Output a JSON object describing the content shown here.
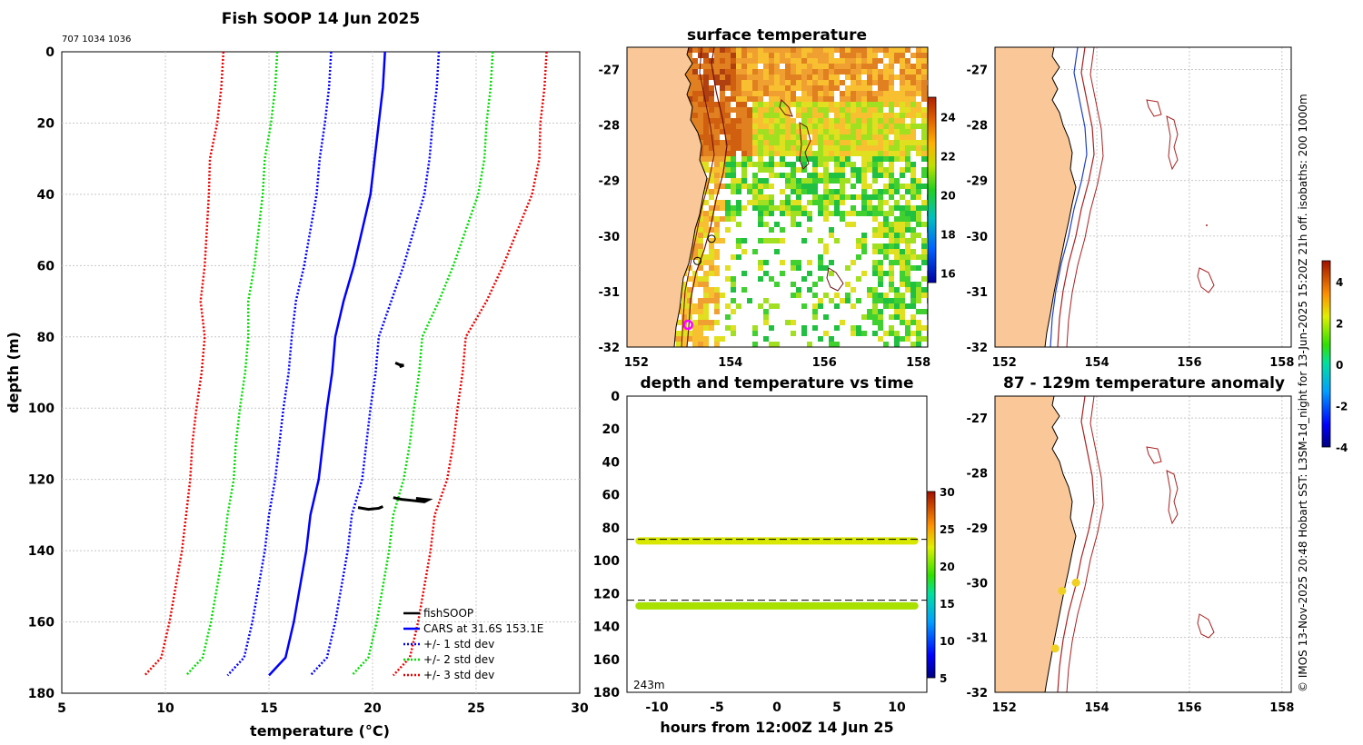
{
  "figure_title": "Fish SOOP 14 Jun 2025",
  "cast_ids": "707 1034 1036",
  "side_text": "© IMOS 13-Nov-2025 20:48 Hobart SST: L3SM-1d_night for 13-Jun-2025 15:20Z 21h off. isobaths: 200  1000m",
  "colors": {
    "cars": "#0000ff",
    "std1": "#0000ff",
    "std2": "#00dd00",
    "std3": "#ee0000",
    "land": "#fac898",
    "fishsoop": "#000000",
    "isobath": "#aa2222",
    "marker": "#ff00ff"
  },
  "chart_data": [
    {
      "type": "line",
      "id": "profile",
      "title": "Fish SOOP 14 Jun 2025",
      "xlabel": "temperature (°C)",
      "ylabel": "depth (m)",
      "xlim": [
        5,
        30
      ],
      "ylim": [
        180,
        0
      ],
      "xticks": [
        5,
        10,
        15,
        20,
        25,
        30
      ],
      "yticks": [
        0,
        20,
        40,
        60,
        80,
        100,
        120,
        140,
        160,
        180
      ],
      "depths": [
        0,
        10,
        20,
        30,
        40,
        50,
        60,
        70,
        80,
        90,
        100,
        110,
        120,
        130,
        140,
        150,
        160,
        170,
        175
      ],
      "cars_mean": [
        20.6,
        20.5,
        20.3,
        20.1,
        19.9,
        19.5,
        19.1,
        18.6,
        18.2,
        18.05,
        17.8,
        17.6,
        17.4,
        17.0,
        16.8,
        16.5,
        16.2,
        15.8,
        15.0
      ],
      "std_offsets": [
        [
          2.6,
          2.6,
          2.6,
          2.65,
          2.6,
          2.5,
          2.4,
          2.3,
          2.1,
          2.1,
          2.1,
          2.1,
          2.1,
          2.0,
          2.0,
          2.0,
          2.0,
          2.0,
          2.0
        ],
        [
          5.2,
          5.2,
          5.2,
          5.3,
          5.2,
          5.0,
          4.8,
          4.6,
          4.2,
          4.2,
          4.2,
          4.2,
          4.1,
          4.0,
          4.0,
          4.0,
          4.0,
          4.0,
          4.0
        ],
        [
          7.8,
          7.8,
          7.8,
          7.95,
          7.8,
          7.5,
          7.2,
          6.9,
          6.3,
          6.3,
          6.3,
          6.3,
          6.2,
          6.0,
          6.0,
          6.0,
          6.0,
          6.0,
          6.0
        ]
      ],
      "fishsoop_segments": [
        {
          "depths": [
            87.3,
            87.8,
            88.0,
            88.4
          ],
          "temps": [
            21.1,
            21.3,
            21.5,
            21.3
          ]
        },
        {
          "depths": [
            125.1,
            125.6,
            125.9,
            126.3,
            125.7,
            125.3
          ],
          "temps": [
            21.0,
            21.4,
            21.9,
            22.5,
            22.7,
            22.1
          ]
        },
        {
          "depths": [
            127.9,
            128.4,
            128.1,
            127.6
          ],
          "temps": [
            19.3,
            19.8,
            20.3,
            20.5
          ]
        }
      ],
      "legend_position": "bottom-right",
      "legend": [
        "fishSOOP",
        "CARS at 31.6S 153.1E",
        "+/- 1 std dev",
        "+/- 2 std dev",
        "+/- 3 std dev"
      ]
    },
    {
      "type": "heatmap",
      "id": "sst_map",
      "title": "surface temperature",
      "xlim": [
        151.8,
        158.2
      ],
      "ylim": [
        -32,
        -26.6
      ],
      "xticks": [
        152,
        154,
        156,
        158
      ],
      "yticks": [
        -27,
        -28,
        -29,
        -30,
        -31,
        -32
      ],
      "colorbar_range": [
        15.5,
        25
      ],
      "colorbar_ticks": [
        16,
        18,
        20,
        22,
        24
      ],
      "track_points": [
        {
          "lon": 153.6,
          "lat": -30.05
        },
        {
          "lon": 153.3,
          "lat": -30.45
        }
      ],
      "cast_location": {
        "lon": 153.1,
        "lat": -31.6
      }
    },
    {
      "type": "map",
      "id": "isobath_map",
      "xlim": [
        151.8,
        158.2
      ],
      "ylim": [
        -32,
        -26.6
      ],
      "xticks": [
        152,
        154,
        156,
        158
      ],
      "yticks": [
        -27,
        -28,
        -29,
        -30,
        -31,
        -32
      ]
    },
    {
      "type": "scatter",
      "id": "depth_time",
      "title": "depth and temperature vs time",
      "xlabel": "hours from 12:00Z 14 Jun 25",
      "xlim": [
        -12.5,
        12.5
      ],
      "ylim": [
        180,
        0
      ],
      "xticks": [
        -10,
        -5,
        0,
        5,
        10
      ],
      "yticks": [
        0,
        20,
        40,
        60,
        80,
        100,
        120,
        140,
        160,
        180
      ],
      "bands": [
        {
          "depth": 88.0,
          "temp": 22.5,
          "dashed_depth": 87.0
        },
        {
          "depth": 127.5,
          "temp": 21.5,
          "dashed_depth": 124.0
        }
      ],
      "colorbar_range": [
        5,
        30
      ],
      "colorbar_ticks": [
        5,
        10,
        15,
        20,
        25,
        30
      ],
      "bottom_depth_label": "243m"
    },
    {
      "type": "scatter",
      "id": "anomaly_map",
      "title": "87 - 129m temperature anomaly",
      "xlim": [
        151.8,
        158.2
      ],
      "ylim": [
        -32,
        -26.6
      ],
      "xticks": [
        152,
        154,
        156,
        158
      ],
      "yticks": [
        -27,
        -28,
        -29,
        -30,
        -31,
        -32
      ],
      "points": [
        {
          "lon": 153.55,
          "lat": -30.0,
          "anomaly": 1.8
        },
        {
          "lon": 153.25,
          "lat": -30.15,
          "anomaly": 2.0
        },
        {
          "lon": 153.1,
          "lat": -31.2,
          "anomaly": 2.1
        }
      ],
      "colorbar_range": [
        -4,
        5
      ],
      "colorbar_ticks": [
        -4,
        -2,
        0,
        2,
        4
      ]
    }
  ]
}
